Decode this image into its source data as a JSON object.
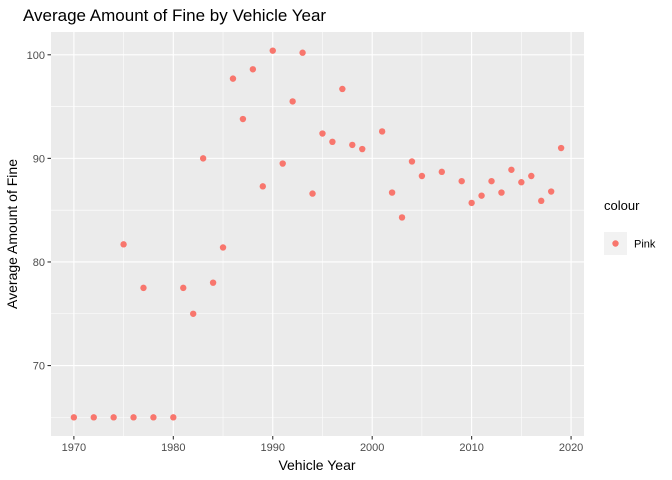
{
  "chart_data": {
    "type": "scatter",
    "title": "Average Amount of Fine by Vehicle Year",
    "xlabel": "Vehicle Year",
    "ylabel": "Average Amount of Fine",
    "xlim": [
      1967.7,
      2021.3
    ],
    "ylim": [
      63.2,
      102.2
    ],
    "xticks": [
      1970,
      1980,
      1990,
      2000,
      2010,
      2020
    ],
    "yticks": [
      70,
      80,
      90,
      100
    ],
    "grid": true,
    "legend": {
      "title": "colour",
      "position": "right",
      "entries": [
        {
          "label": "Pink",
          "color": "#F8766D"
        }
      ]
    },
    "series": [
      {
        "name": "Pink",
        "color": "#F8766D",
        "points": [
          [
            1970,
            65.0
          ],
          [
            1972,
            65.0
          ],
          [
            1974,
            65.0
          ],
          [
            1975,
            81.7
          ],
          [
            1976,
            65.0
          ],
          [
            1977,
            77.5
          ],
          [
            1978,
            65.0
          ],
          [
            1980,
            65.0
          ],
          [
            1981,
            77.5
          ],
          [
            1982,
            75.0
          ],
          [
            1983,
            90.0
          ],
          [
            1984,
            78.0
          ],
          [
            1985,
            81.4
          ],
          [
            1986,
            97.7
          ],
          [
            1987,
            93.8
          ],
          [
            1988,
            98.6
          ],
          [
            1989,
            87.3
          ],
          [
            1990,
            100.4
          ],
          [
            1991,
            89.5
          ],
          [
            1992,
            95.5
          ],
          [
            1993,
            100.2
          ],
          [
            1994,
            86.6
          ],
          [
            1995,
            92.4
          ],
          [
            1996,
            91.6
          ],
          [
            1997,
            96.7
          ],
          [
            1998,
            91.3
          ],
          [
            1999,
            90.9
          ],
          [
            2001,
            92.6
          ],
          [
            2002,
            86.7
          ],
          [
            2003,
            84.3
          ],
          [
            2004,
            89.7
          ],
          [
            2005,
            88.3
          ],
          [
            2007,
            88.7
          ],
          [
            2009,
            87.8
          ],
          [
            2010,
            85.7
          ],
          [
            2011,
            86.4
          ],
          [
            2012,
            87.8
          ],
          [
            2013,
            86.7
          ],
          [
            2014,
            88.9
          ],
          [
            2015,
            87.7
          ],
          [
            2016,
            88.3
          ],
          [
            2017,
            85.9
          ],
          [
            2018,
            86.8
          ],
          [
            2019,
            91.0
          ]
        ]
      }
    ]
  }
}
